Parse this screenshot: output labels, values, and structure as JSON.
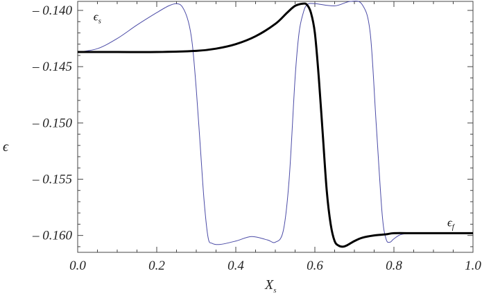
{
  "chart_data": {
    "type": "line",
    "title": "",
    "xlabel": "X",
    "xlabel_sub": "s",
    "ylabel": "ϵ",
    "xlim": [
      0.0,
      1.0
    ],
    "ylim": [
      -0.1615,
      -0.1392
    ],
    "x_ticks": [
      0.0,
      0.2,
      0.4,
      0.6,
      0.8,
      1.0
    ],
    "x_tick_labels": [
      "0.0",
      "0.2",
      "0.4",
      "0.6",
      "0.8",
      "1.0"
    ],
    "y_ticks": [
      -0.16,
      -0.155,
      -0.15,
      -0.145,
      -0.14
    ],
    "y_tick_labels": [
      "– 0.160",
      "– 0.155",
      "– 0.150",
      "– 0.145",
      "– 0.140"
    ],
    "grid": false,
    "annotations": [
      {
        "text": "ϵ",
        "sub": "s",
        "x": 0.04,
        "y": -0.1409
      },
      {
        "text": "ϵ",
        "sub": "f",
        "x": 0.935,
        "y": -0.1592
      }
    ],
    "series": [
      {
        "color": "#4a4aa6",
        "width": 1,
        "x": [
          0.0,
          0.05,
          0.1,
          0.15,
          0.2,
          0.23,
          0.25,
          0.265,
          0.28,
          0.29,
          0.3,
          0.31,
          0.32,
          0.33,
          0.34,
          0.36,
          0.4,
          0.44,
          0.48,
          0.5,
          0.52,
          0.535,
          0.55,
          0.56,
          0.57,
          0.58,
          0.6,
          0.65,
          0.69,
          0.72,
          0.74,
          0.755,
          0.77,
          0.78,
          0.79,
          0.8,
          0.82,
          0.86,
          0.9,
          0.95,
          1.0
        ],
        "y": [
          -0.1437,
          -0.1434,
          -0.1425,
          -0.1413,
          -0.1402,
          -0.1396,
          -0.1394,
          -0.1397,
          -0.141,
          -0.143,
          -0.147,
          -0.152,
          -0.157,
          -0.1602,
          -0.1607,
          -0.1608,
          -0.1605,
          -0.1601,
          -0.1604,
          -0.1606,
          -0.1596,
          -0.155,
          -0.146,
          -0.142,
          -0.1403,
          -0.1395,
          -0.1394,
          -0.1396,
          -0.1392,
          -0.1395,
          -0.142,
          -0.15,
          -0.158,
          -0.1603,
          -0.1606,
          -0.1603,
          -0.1599,
          -0.1598,
          -0.1598,
          -0.1598,
          -0.1598
        ]
      },
      {
        "color": "#000000",
        "width": 3,
        "x": [
          0.0,
          0.1,
          0.2,
          0.3,
          0.35,
          0.4,
          0.45,
          0.5,
          0.53,
          0.55,
          0.57,
          0.58,
          0.59,
          0.6,
          0.61,
          0.62,
          0.63,
          0.64,
          0.65,
          0.66,
          0.67,
          0.68,
          0.7,
          0.72,
          0.75,
          0.78,
          0.8,
          0.85,
          0.9,
          0.95,
          1.0
        ],
        "y": [
          -0.1437,
          -0.1437,
          -0.1437,
          -0.1436,
          -0.1434,
          -0.143,
          -0.1423,
          -0.1412,
          -0.1402,
          -0.1396,
          -0.1394,
          -0.1395,
          -0.1402,
          -0.142,
          -0.146,
          -0.151,
          -0.156,
          -0.159,
          -0.1605,
          -0.1609,
          -0.161,
          -0.1609,
          -0.1605,
          -0.1602,
          -0.16,
          -0.1599,
          -0.1598,
          -0.1598,
          -0.1598,
          -0.1598,
          -0.1598
        ]
      }
    ]
  }
}
